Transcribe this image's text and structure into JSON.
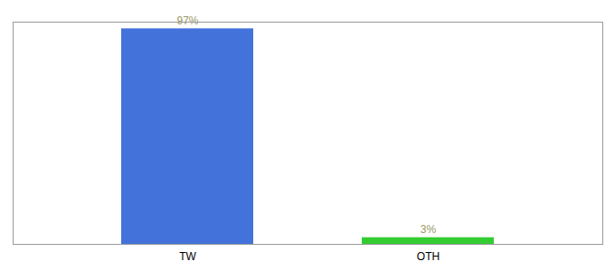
{
  "chart_data": {
    "type": "bar",
    "categories": [
      "TW",
      "OTH"
    ],
    "values": [
      97,
      3
    ],
    "value_labels": [
      "97%",
      "3%"
    ],
    "colors": [
      "#4472db",
      "#33cc33"
    ],
    "ylim": [
      0,
      100
    ],
    "yticks": [],
    "data_labels": true,
    "tick_labels": "x",
    "grid": false
  }
}
